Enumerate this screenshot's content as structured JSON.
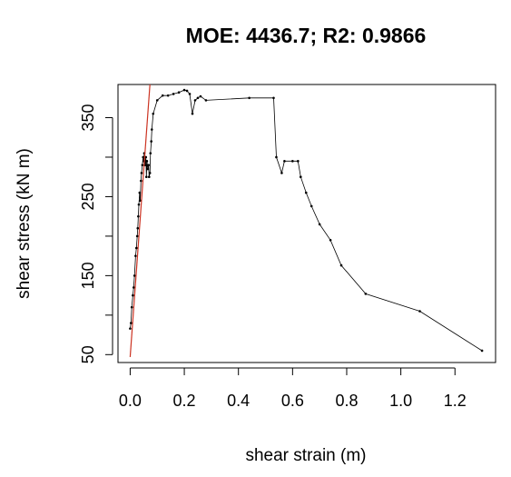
{
  "chart_data": {
    "type": "line",
    "title": "MOE: 4436.7; R2: 0.9866",
    "xlabel": "shear strain (m)",
    "ylabel": "shear stress (kN m)",
    "xlim": [
      -0.045,
      1.35
    ],
    "ylim": [
      40,
      392
    ],
    "x_ticks": [
      0.0,
      0.2,
      0.4,
      0.6,
      0.8,
      1.0,
      1.2
    ],
    "x_tick_labels": [
      "0.0",
      "0.2",
      "0.4",
      "0.6",
      "0.8",
      "1.0",
      "1.2"
    ],
    "y_ticks": [
      50,
      100,
      150,
      200,
      250,
      300,
      350
    ],
    "y_tick_labels": [
      "50",
      "",
      "150",
      "",
      "250",
      "",
      "350"
    ],
    "grid": false,
    "series": [
      {
        "color": "#000000",
        "x": [
          0.0,
          0.003,
          0.006,
          0.01,
          0.013,
          0.016,
          0.02,
          0.023,
          0.026,
          0.028,
          0.03,
          0.032,
          0.035,
          0.037,
          0.04,
          0.042,
          0.045,
          0.048,
          0.05,
          0.052,
          0.055,
          0.058,
          0.06,
          0.062,
          0.065,
          0.068,
          0.07,
          0.073,
          0.075,
          0.078,
          0.08,
          0.085,
          0.1,
          0.12,
          0.14,
          0.16,
          0.18,
          0.2,
          0.21,
          0.22,
          0.23,
          0.24,
          0.25,
          0.26,
          0.28,
          0.44,
          0.53,
          0.54,
          0.56,
          0.57,
          0.6,
          0.62,
          0.63,
          0.65,
          0.67,
          0.7,
          0.74,
          0.78,
          0.87,
          1.07,
          1.3
        ],
        "y": [
          83,
          90,
          110,
          125,
          135,
          150,
          175,
          185,
          200,
          210,
          225,
          240,
          255,
          245,
          270,
          280,
          290,
          300,
          295,
          305,
          290,
          300,
          275,
          295,
          285,
          290,
          275,
          280,
          305,
          320,
          335,
          355,
          372,
          378,
          378,
          380,
          382,
          385,
          384,
          380,
          355,
          372,
          375,
          377,
          372,
          375,
          375,
          300,
          280,
          295,
          295,
          295,
          275,
          255,
          238,
          215,
          195,
          163,
          127,
          105,
          55
        ]
      },
      {
        "color": "#cc3322",
        "x": [
          0.0,
          0.073
        ],
        "y": [
          47,
          392
        ]
      }
    ]
  }
}
